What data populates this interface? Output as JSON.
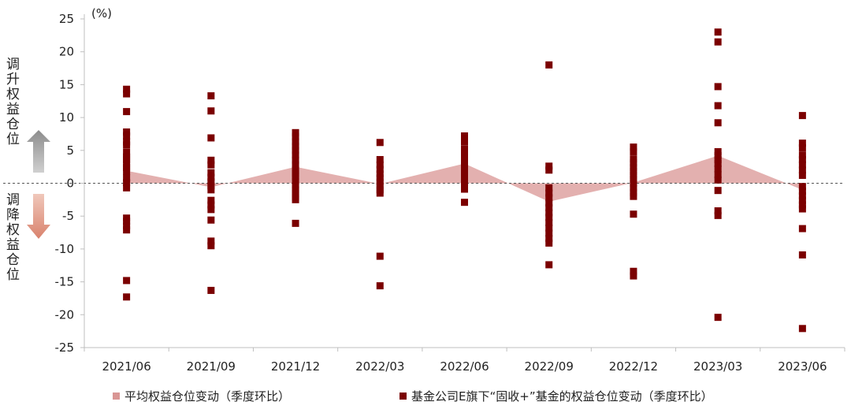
{
  "chart_data": {
    "type": "area+scatter",
    "unit_label": "(%)",
    "categories": [
      "2021/06",
      "2021/09",
      "2021/12",
      "2022/03",
      "2022/06",
      "2022/09",
      "2022/12",
      "2023/03",
      "2023/06"
    ],
    "ylim": [
      -25,
      25
    ],
    "yticks": [
      25,
      20,
      15,
      10,
      5,
      0,
      -5,
      -10,
      -15,
      -20,
      -25
    ],
    "grid": false,
    "zero_line": "dashed",
    "legend_position": "bottom",
    "series": [
      {
        "name": "平均权益仓位变动（季度环比）",
        "type": "area",
        "color": "#d99694",
        "values": [
          1.9,
          -0.6,
          2.5,
          -0.1,
          3.0,
          -2.8,
          0.1,
          4.2,
          -1.0
        ]
      },
      {
        "name": "基金公司E旗下“固收+”基金的权益仓位变动（季度环比）",
        "type": "scatter",
        "color": "#7b0000",
        "points": [
          [
            14.3,
            13.6,
            10.9,
            7.8,
            7.2,
            6.3,
            5.8,
            4.7,
            4.0,
            3.6,
            2.9,
            2.4,
            1.8,
            0.8,
            0.1,
            -0.7,
            -5.3,
            -5.8,
            -6.5,
            -7.1,
            -14.8,
            -17.3
          ],
          [
            13.3,
            11.0,
            6.9,
            3.5,
            2.8,
            1.6,
            0.9,
            0.2,
            -0.4,
            -1.0,
            -2.6,
            -3.3,
            -4.0,
            -5.6,
            -8.8,
            -9.5,
            -16.3
          ],
          [
            7.7,
            7.1,
            6.3,
            5.6,
            5.0,
            4.3,
            3.5,
            2.8,
            2.0,
            1.5,
            1.0,
            0.3,
            -0.3,
            -1.0,
            -1.5,
            -2.1,
            -2.5,
            -6.1
          ],
          [
            6.2,
            3.6,
            2.8,
            2.1,
            1.4,
            0.8,
            0.2,
            -0.4,
            -1.0,
            -1.5,
            -11.1,
            -15.6
          ],
          [
            7.2,
            6.3,
            5.2,
            4.5,
            3.8,
            3.1,
            2.5,
            1.8,
            1.2,
            0.5,
            -0.2,
            -0.9,
            -2.9
          ],
          [
            18.0,
            2.6,
            2.0,
            -0.7,
            -1.5,
            -2.2,
            -3.0,
            -3.7,
            -4.5,
            -5.2,
            -6.0,
            -6.8,
            -7.6,
            -8.4,
            -9.1,
            -12.4
          ],
          [
            5.5,
            4.8,
            3.7,
            3.1,
            2.4,
            1.8,
            1.2,
            0.6,
            0.0,
            -0.7,
            -1.4,
            -2.0,
            -4.7,
            -13.4,
            -14.1
          ],
          [
            23.0,
            21.5,
            14.7,
            11.8,
            9.2,
            4.8,
            4.2,
            3.6,
            3.0,
            2.2,
            1.3,
            0.5,
            -1.1,
            -4.2,
            -4.9,
            -20.4
          ],
          [
            10.3,
            6.1,
            5.4,
            4.3,
            3.6,
            2.8,
            2.0,
            1.2,
            -0.5,
            -1.2,
            -1.9,
            -2.6,
            -3.3,
            -3.9,
            -6.9,
            -10.9,
            -22.1
          ]
        ]
      }
    ],
    "side_labels": {
      "up": "调升权益仓位",
      "down": "调降权益仓位"
    }
  }
}
